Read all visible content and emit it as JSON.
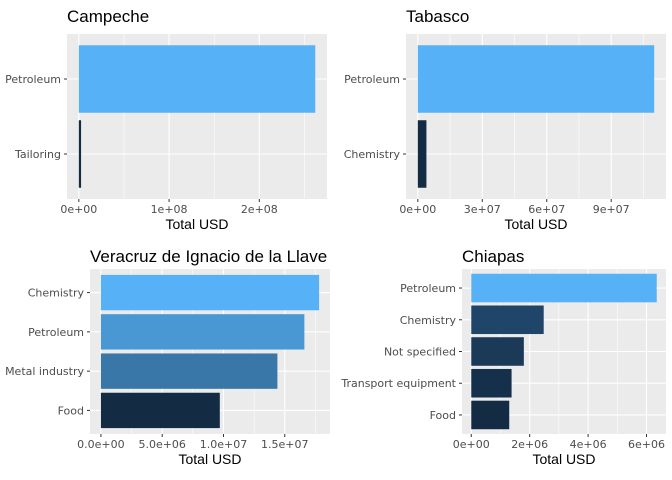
{
  "chart_data": [
    {
      "type": "bar",
      "orientation": "horizontal",
      "title": "Campeche",
      "xlabel": "Total USD",
      "ylabel": "",
      "categories": [
        "Petroleum",
        "Tailoring"
      ],
      "values": [
        262000000,
        2500000
      ],
      "colors": [
        "#56B1F7",
        "#132B43"
      ],
      "xlim": [
        -13100000,
        275000000
      ],
      "xticks": [
        0,
        100000000,
        200000000
      ],
      "xtick_labels": [
        "0e+00",
        "1e+08",
        "2e+08"
      ],
      "grid": true
    },
    {
      "type": "bar",
      "orientation": "horizontal",
      "title": "Tabasco",
      "xlabel": "Total USD",
      "ylabel": "",
      "categories": [
        "Petroleum",
        "Chemistry"
      ],
      "values": [
        110000000,
        4000000
      ],
      "colors": [
        "#56B1F7",
        "#132B43"
      ],
      "xlim": [
        -5500000,
        115500000
      ],
      "xticks": [
        0,
        30000000,
        60000000,
        90000000
      ],
      "xtick_labels": [
        "0e+00",
        "3e+07",
        "6e+07",
        "9e+07"
      ],
      "grid": true
    },
    {
      "type": "bar",
      "orientation": "horizontal",
      "title": "Veracruz de Ignacio de la Llave",
      "xlabel": "Total USD",
      "ylabel": "",
      "categories": [
        "Chemistry",
        "Petroleum",
        "Metal industry",
        "Food"
      ],
      "values": [
        17800000,
        16600000,
        14400000,
        9700000
      ],
      "colors": [
        "#56B1F7",
        "#4A98D3",
        "#3A77A9",
        "#132B43"
      ],
      "xlim": [
        -890000,
        18690000
      ],
      "xticks": [
        0,
        5000000,
        10000000,
        15000000
      ],
      "xtick_labels": [
        "0.0e+00",
        "5.0e+06",
        "1.0e+07",
        "1.5e+07"
      ],
      "grid": true
    },
    {
      "type": "bar",
      "orientation": "horizontal",
      "title": "Chiapas",
      "xlabel": "Total USD",
      "ylabel": "",
      "categories": [
        "Petroleum",
        "Chemistry",
        "Not specified",
        "Transport equipment",
        "Food"
      ],
      "values": [
        6350000,
        2480000,
        1800000,
        1380000,
        1300000
      ],
      "colors": [
        "#56B1F7",
        "#1F4668",
        "#1A3A58",
        "#15304A",
        "#132B43"
      ],
      "xlim": [
        -317500,
        6667500
      ],
      "xticks": [
        0,
        2000000,
        4000000,
        6000000
      ],
      "xtick_labels": [
        "0e+00",
        "2e+06",
        "4e+06",
        "6e+06"
      ],
      "grid": true
    }
  ]
}
